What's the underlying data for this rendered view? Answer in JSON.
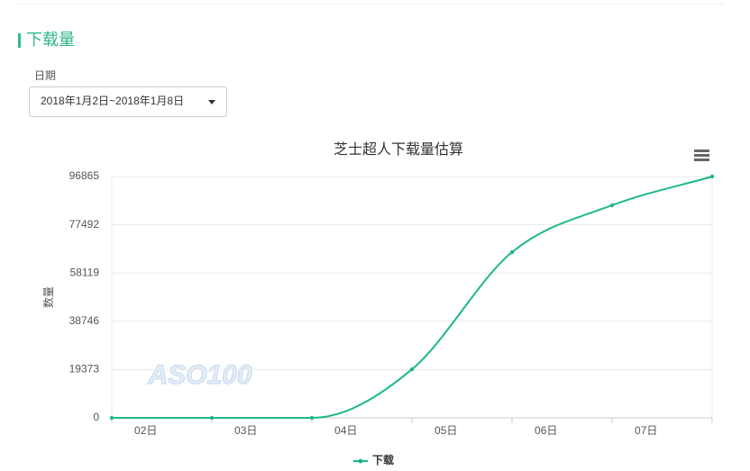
{
  "header": {
    "title": "下载量"
  },
  "filter": {
    "label": "日期",
    "value": "2018年1月2日~2018年1月8日"
  },
  "chart_data": {
    "type": "line",
    "title": "芝士超人下载量估算",
    "y_label": "数量",
    "watermark": "ASO100",
    "x": [
      0,
      1,
      2,
      3,
      4,
      5,
      6
    ],
    "xlim": [
      0,
      6
    ],
    "xticks": [
      {
        "value": 0.34,
        "label": "02日"
      },
      {
        "value": 1.34,
        "label": "03日"
      },
      {
        "value": 2.34,
        "label": "04日"
      },
      {
        "value": 3.34,
        "label": "05日"
      },
      {
        "value": 4.34,
        "label": "06日"
      },
      {
        "value": 5.34,
        "label": "07日"
      }
    ],
    "ylim": [
      0,
      96865
    ],
    "yticks": [
      0,
      19373,
      38746,
      58119,
      77492,
      96865
    ],
    "grid": true,
    "smooth": true,
    "series": [
      {
        "name": "下载",
        "color": "#1db88c",
        "values": [
          0,
          0,
          0,
          19500,
          66500,
          85300,
          96865
        ]
      }
    ]
  }
}
